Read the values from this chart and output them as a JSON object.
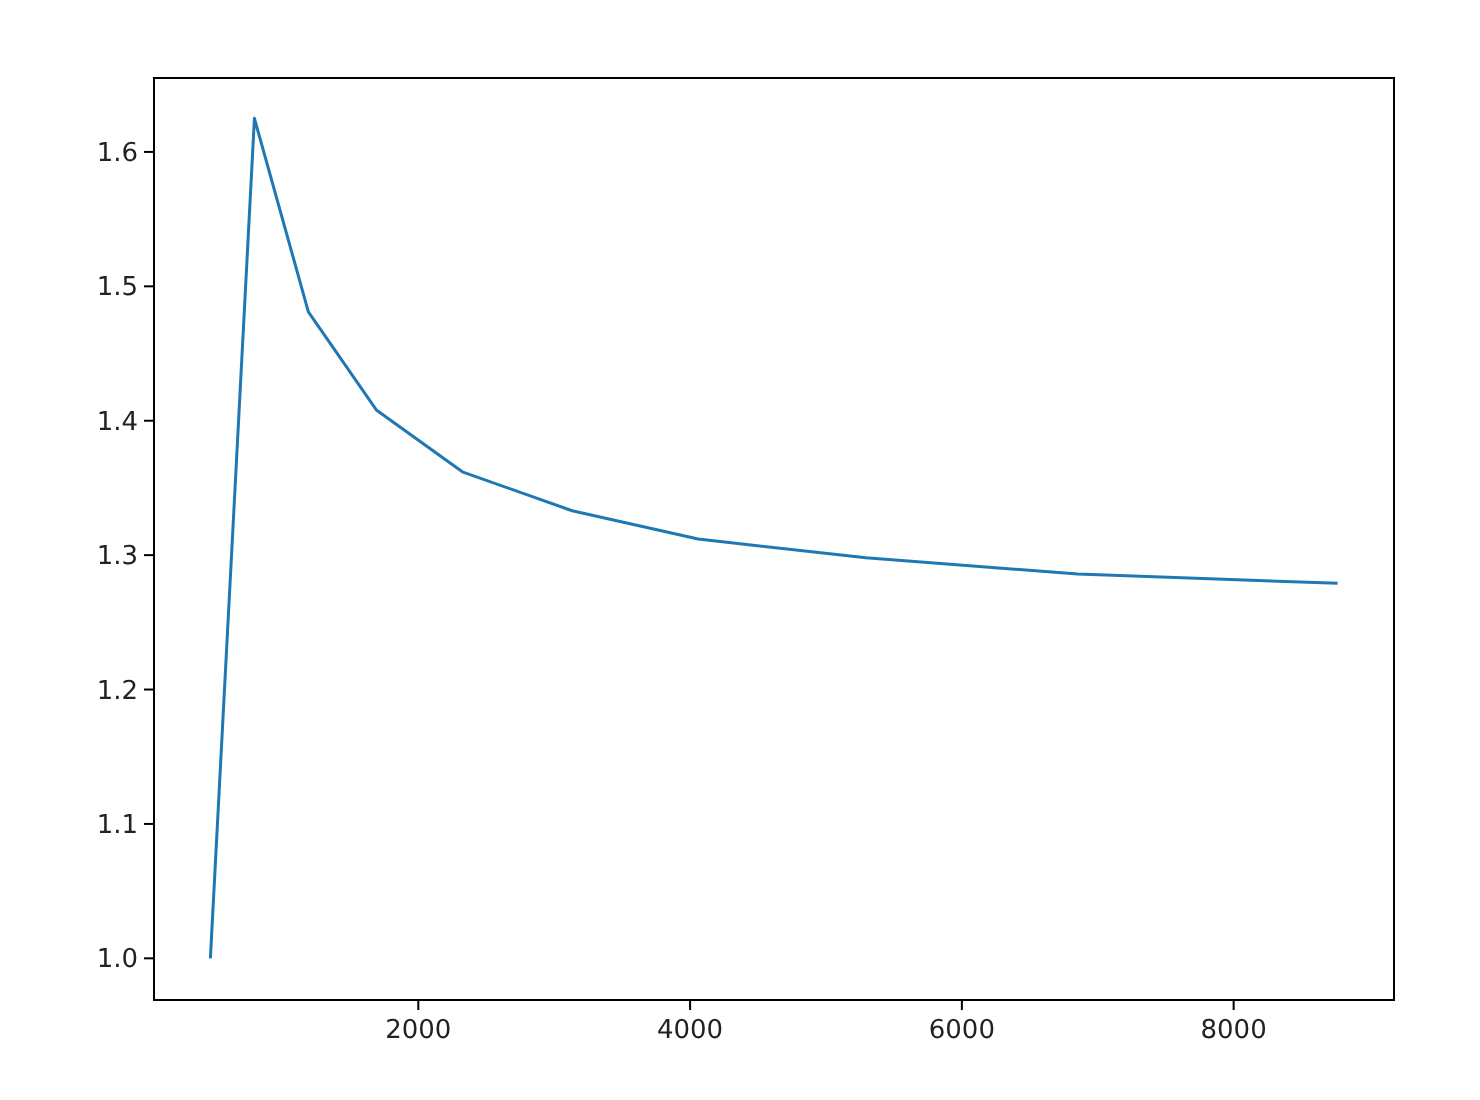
{
  "chart_data": {
    "type": "line",
    "x": [
      470,
      794,
      1191,
      1691,
      2324,
      3132,
      4059,
      5294,
      6853,
      8765
    ],
    "series": [
      {
        "color": "#1f77b4",
        "values": [
          1.0,
          1.625,
          1.481,
          1.408,
          1.362,
          1.333,
          1.312,
          1.298,
          1.286,
          1.279
        ]
      }
    ],
    "xlim": [
      55,
      9180
    ],
    "xticks": [
      2000,
      4000,
      6000,
      8000
    ],
    "ylim": [
      0.969,
      1.655
    ],
    "yticks": [
      {
        "value": 1.0,
        "label": "1.0"
      },
      {
        "value": 1.1,
        "label": "1.1"
      },
      {
        "value": 1.2,
        "label": "1.2"
      },
      {
        "value": 1.3,
        "label": "1.3"
      },
      {
        "value": 1.4,
        "label": "1.4"
      },
      {
        "value": 1.5,
        "label": "1.5"
      },
      {
        "value": 1.6,
        "label": "1.6"
      }
    ],
    "grid": false
  }
}
